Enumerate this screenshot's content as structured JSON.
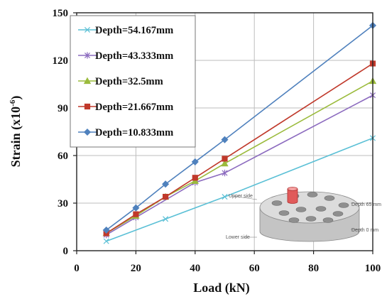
{
  "chart_data": {
    "type": "line",
    "xlabel": "Load (kN)",
    "ylabel": "Strain (x10",
    "ylabel_exponent": "-6",
    "ylabel_close": ")",
    "xlim": [
      0,
      100
    ],
    "ylim": [
      0,
      150
    ],
    "x_ticks": [
      0,
      20,
      40,
      60,
      80,
      100
    ],
    "y_ticks": [
      0,
      30,
      60,
      90,
      120,
      150
    ],
    "grid": true,
    "legend_position": "top-left",
    "series": [
      {
        "name": "Depth=54.167mm",
        "color": "#5bc0d6",
        "marker": "x",
        "x": [
          10,
          30,
          50,
          100
        ],
        "y": [
          6,
          20,
          34,
          71
        ]
      },
      {
        "name": "Depth=43.333mm",
        "color": "#8c6bbf",
        "marker": "star",
        "x": [
          10,
          20,
          40,
          50,
          100
        ],
        "y": [
          10,
          21,
          43,
          49,
          98
        ]
      },
      {
        "name": "Depth=32.5mm",
        "color": "#9bbb3c",
        "marker": "triangle",
        "x": [
          10,
          20,
          30,
          40,
          50,
          100
        ],
        "y": [
          11,
          22,
          34,
          44,
          55,
          107
        ]
      },
      {
        "name": "Depth=21.667mm",
        "color": "#c0392b",
        "marker": "square",
        "x": [
          10,
          20,
          30,
          40,
          50,
          100
        ],
        "y": [
          11,
          23,
          34,
          46,
          58,
          118
        ]
      },
      {
        "name": "Depth=10.833mm",
        "color": "#4f81bd",
        "marker": "diamond",
        "x": [
          10,
          20,
          30,
          40,
          50,
          100
        ],
        "y": [
          13,
          27,
          42,
          56,
          70,
          142
        ]
      }
    ]
  },
  "inset": {
    "labels": {
      "upper": "Upper side",
      "lower": "Lower side",
      "depth_top": "Depth 65 mm",
      "depth_bottom": "Depth 0 mm"
    }
  }
}
